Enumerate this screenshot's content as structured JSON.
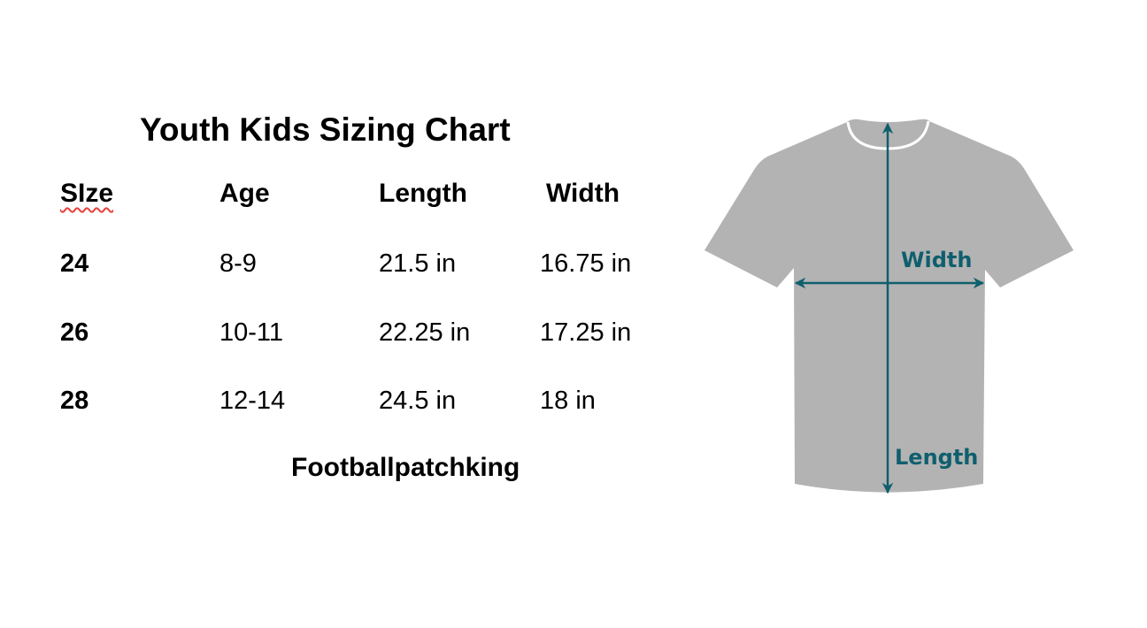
{
  "title": "Youth Kids Sizing Chart",
  "headers": [
    "SIze",
    "Age",
    "Length",
    "Width"
  ],
  "rows": [
    {
      "size": "24",
      "age": "8-9",
      "length": "21.5 in",
      "width": "16.75 in"
    },
    {
      "size": "26",
      "age": "10-11",
      "length": "22.25 in",
      "width": "17.25 in"
    },
    {
      "size": "28",
      "age": "12-14",
      "length": "24.5 in",
      "width": "18 in"
    }
  ],
  "footer": "Footballpatchking",
  "diagram": {
    "width_label": "Width",
    "length_label": "Length",
    "shirt_color": "#b3b3b3",
    "arrow_color": "#0f5f6d"
  }
}
